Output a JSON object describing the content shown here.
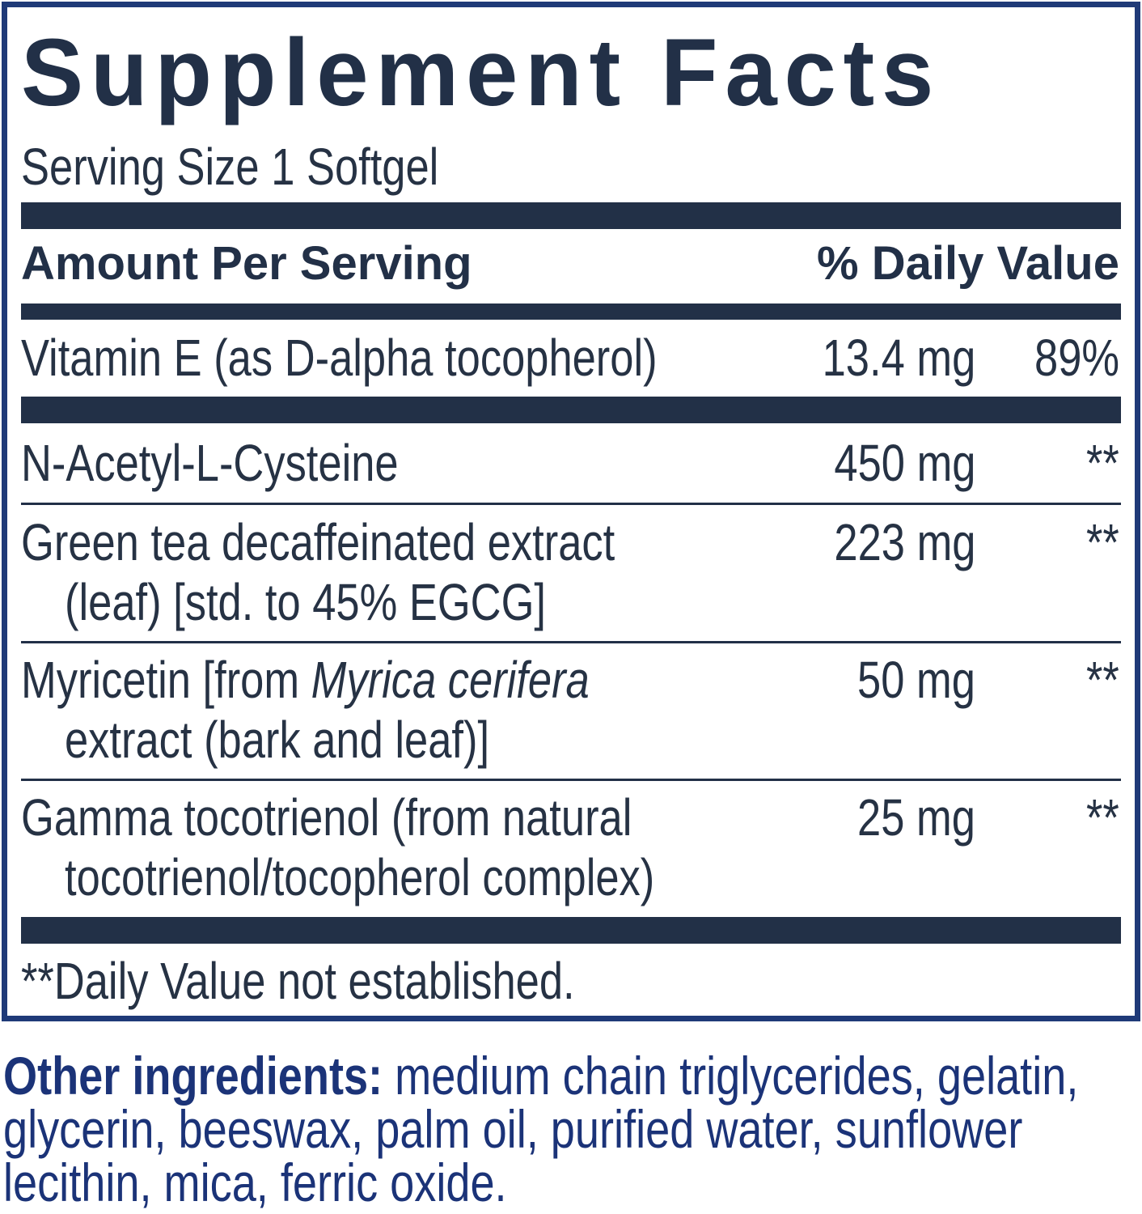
{
  "label": {
    "title": "Supplement Facts",
    "serving_size": "Serving Size 1 Softgel",
    "header_amount": "Amount Per Serving",
    "header_dv": "% Daily Value",
    "rows": [
      {
        "name": "Vitamin E (as D-alpha tocopherol)",
        "amount": "13.4 mg",
        "dv": "89%"
      },
      {
        "name": "N-Acetyl-L-Cysteine",
        "amount": "450 mg",
        "dv": "**"
      },
      {
        "name": "Green tea decaffeinated extract",
        "name_line2": "(leaf) [std. to 45% EGCG]",
        "amount": "223 mg",
        "dv": "**"
      },
      {
        "name_prefix": "Myricetin [from ",
        "name_italic": "Myrica cerifera",
        "name_line2": "extract (bark and leaf)]",
        "amount": "50 mg",
        "dv": "**"
      },
      {
        "name": "Gamma tocotrienol (from natural",
        "name_line2": "tocotrienol/tocopherol complex)",
        "amount": "25 mg",
        "dv": "**"
      }
    ],
    "footnote": "**Daily Value not established."
  },
  "other_ingredients": {
    "label": "Other ingredients:",
    "text": " medium chain triglycerides, gelatin, glycerin, beeswax, palm oil, purified water, sunflower lecithin, mica, ferric oxide."
  },
  "colors": {
    "border": "#1f3a78",
    "text": "#263244",
    "accent": "#1b3378"
  }
}
